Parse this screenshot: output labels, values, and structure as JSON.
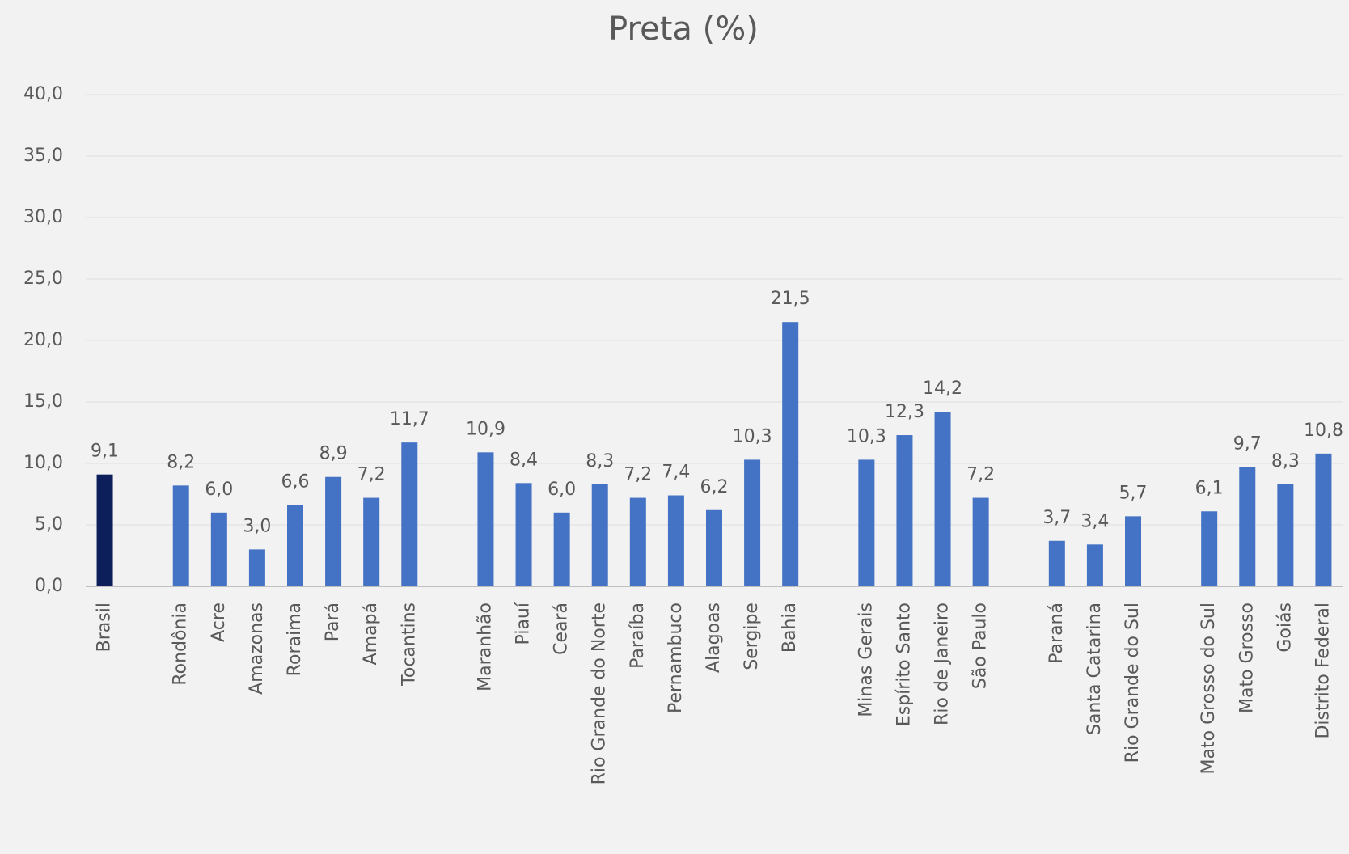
{
  "chart_data": {
    "type": "bar",
    "title": "Preta (%)",
    "categories": [
      "Brasil",
      null,
      "Rondônia",
      "Acre",
      "Amazonas",
      "Roraima",
      "Pará",
      "Amapá",
      "Tocantins",
      null,
      "Maranhão",
      "Piauí",
      "Ceará",
      "Rio Grande do Norte",
      "Paraíba",
      "Pernambuco",
      "Alagoas",
      "Sergipe",
      "Bahia",
      null,
      "Minas Gerais",
      "Espírito Santo",
      "Rio de Janeiro",
      "São Paulo",
      null,
      "Paraná",
      "Santa Catarina",
      "Rio Grande do Sul",
      null,
      "Mato Grosso do Sul",
      "Mato Grosso",
      "Goiás",
      "Distrito Federal"
    ],
    "values": [
      9.1,
      null,
      8.2,
      6.0,
      3.0,
      6.6,
      8.9,
      7.2,
      11.7,
      null,
      10.9,
      8.4,
      6.0,
      8.3,
      7.2,
      7.4,
      6.2,
      10.3,
      21.5,
      null,
      10.3,
      12.3,
      14.2,
      7.2,
      null,
      3.7,
      3.4,
      5.7,
      null,
      6.1,
      9.7,
      8.3,
      10.8
    ],
    "value_labels": [
      "9,1",
      null,
      "8,2",
      "6,0",
      "3,0",
      "6,6",
      "8,9",
      "7,2",
      "11,7",
      null,
      "10,9",
      "8,4",
      "6,0",
      "8,3",
      "7,2",
      "7,4",
      "6,2",
      "10,3",
      "21,5",
      null,
      "10,3",
      "12,3",
      "14,2",
      "7,2",
      null,
      "3,7",
      "3,4",
      "5,7",
      null,
      "6,1",
      "9,7",
      "8,3",
      "10,8"
    ],
    "color": "#4472c4",
    "highlight": {
      "index": 0,
      "color": "#0d1f5a"
    },
    "ylim": [
      0,
      40
    ],
    "yticks": [
      {
        "value": 0,
        "label": "0,0"
      },
      {
        "value": 5,
        "label": "5,0"
      },
      {
        "value": 10,
        "label": "10,0"
      },
      {
        "value": 15,
        "label": "15,0"
      },
      {
        "value": 20,
        "label": "20,0"
      },
      {
        "value": 25,
        "label": "25,0"
      },
      {
        "value": 30,
        "label": "30,0"
      },
      {
        "value": 35,
        "label": "35,0"
      },
      {
        "value": 40,
        "label": "40,0"
      }
    ],
    "grid": true
  }
}
